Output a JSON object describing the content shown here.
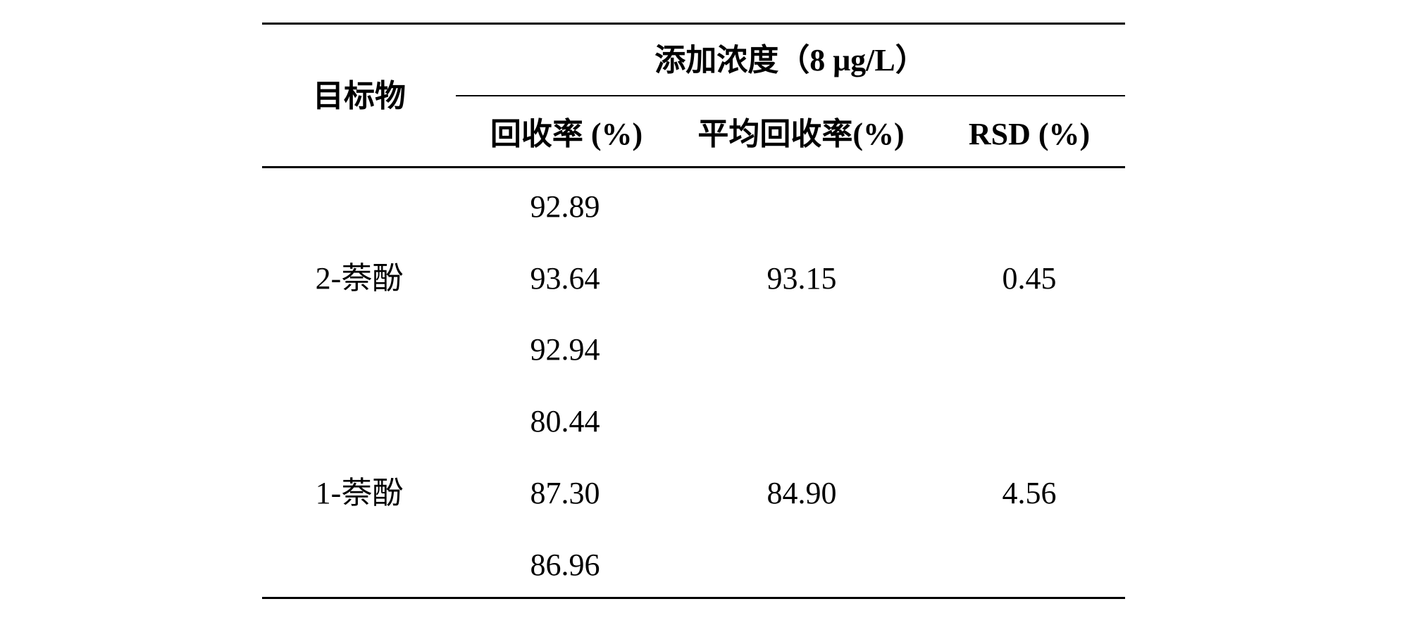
{
  "table": {
    "header": {
      "target_label": "目标物",
      "group_label": "添加浓度（8 μg/L）",
      "col_recovery": "回收率 (%)",
      "col_avg_recovery": "平均回收率(%)",
      "col_rsd": "RSD (%)"
    },
    "rows": [
      {
        "target": "2-萘酚",
        "recoveries": [
          "92.89",
          "93.64",
          "92.94"
        ],
        "avg_recovery": "93.15",
        "rsd": "0.45"
      },
      {
        "target": "1-萘酚",
        "recoveries": [
          "80.44",
          "87.30",
          "86.96"
        ],
        "avg_recovery": "84.90",
        "rsd": "4.56"
      }
    ]
  }
}
